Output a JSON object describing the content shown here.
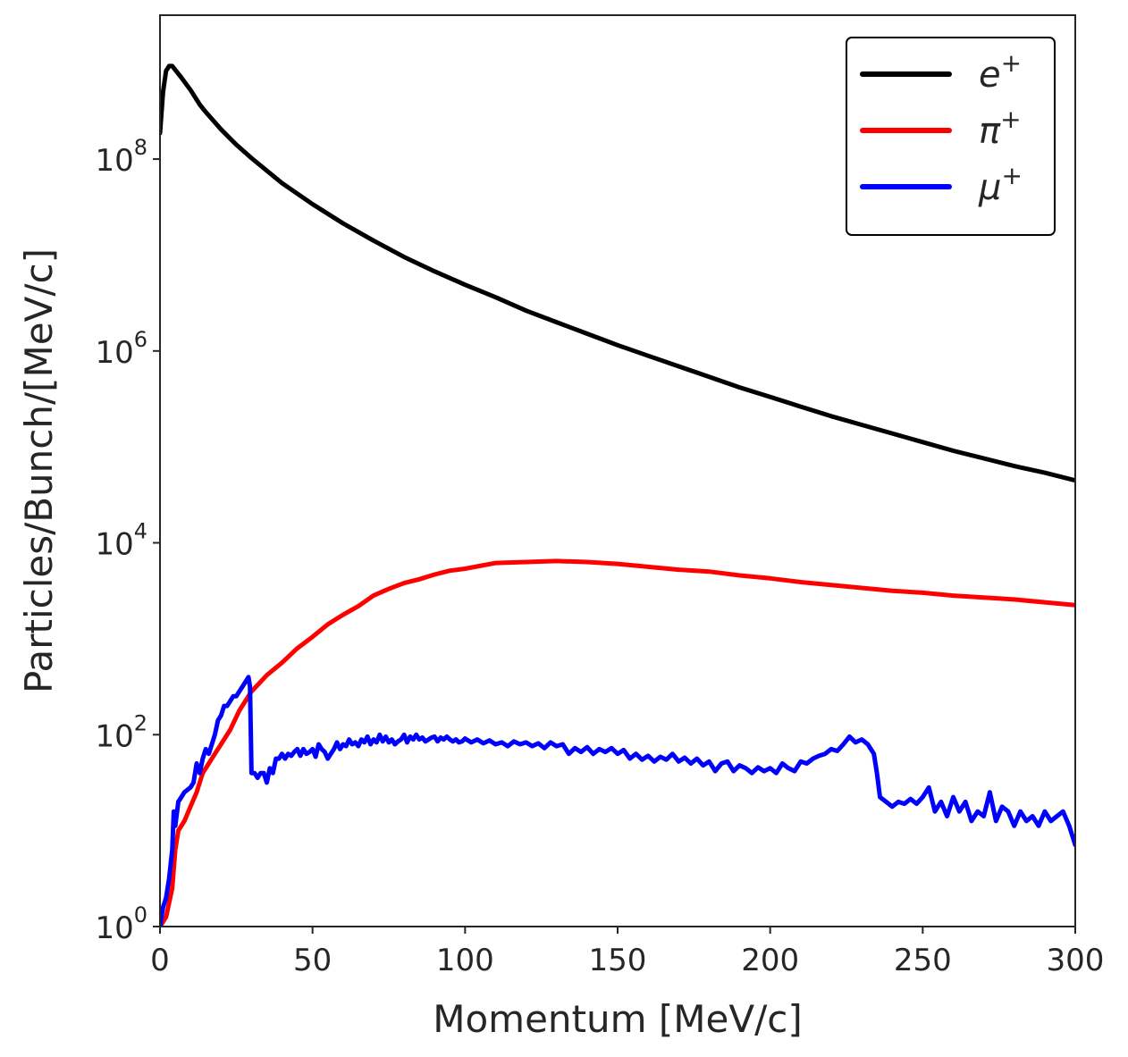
{
  "chart_data": {
    "type": "line",
    "xlabel": "Momentum [MeV/c]",
    "ylabel": "Particles/Bunch/[MeV/c]",
    "yscale": "log",
    "xlim": [
      0,
      300
    ],
    "ylim_exponent": [
      0,
      9.5
    ],
    "x_ticks": [
      0,
      50,
      100,
      150,
      200,
      250,
      300
    ],
    "x_tick_labels": [
      "0",
      "50",
      "100",
      "150",
      "200",
      "250",
      "300"
    ],
    "y_ticks": [
      {
        "base": "10",
        "exp": "0",
        "value": 0
      },
      {
        "base": "10",
        "exp": "2",
        "value": 2
      },
      {
        "base": "10",
        "exp": "4",
        "value": 4
      },
      {
        "base": "10",
        "exp": "6",
        "value": 6
      },
      {
        "base": "10",
        "exp": "8",
        "value": 8
      }
    ],
    "legend_position": "top-right",
    "series": [
      {
        "name_base": "e",
        "name_sup": "+",
        "color": "#000000",
        "points": [
          [
            0,
            8.27
          ],
          [
            1,
            8.7
          ],
          [
            2,
            8.92
          ],
          [
            3,
            8.97
          ],
          [
            4,
            8.97
          ],
          [
            5,
            8.93
          ],
          [
            7,
            8.85
          ],
          [
            10,
            8.72
          ],
          [
            13,
            8.57
          ],
          [
            15,
            8.49
          ],
          [
            20,
            8.31
          ],
          [
            25,
            8.15
          ],
          [
            30,
            8.01
          ],
          [
            40,
            7.75
          ],
          [
            50,
            7.53
          ],
          [
            60,
            7.33
          ],
          [
            70,
            7.15
          ],
          [
            80,
            6.98
          ],
          [
            90,
            6.83
          ],
          [
            100,
            6.69
          ],
          [
            110,
            6.56
          ],
          [
            120,
            6.42
          ],
          [
            130,
            6.3
          ],
          [
            140,
            6.18
          ],
          [
            150,
            6.06
          ],
          [
            160,
            5.95
          ],
          [
            170,
            5.84
          ],
          [
            180,
            5.73
          ],
          [
            190,
            5.62
          ],
          [
            200,
            5.52
          ],
          [
            210,
            5.42
          ],
          [
            220,
            5.32
          ],
          [
            230,
            5.23
          ],
          [
            240,
            5.14
          ],
          [
            250,
            5.05
          ],
          [
            260,
            4.96
          ],
          [
            270,
            4.88
          ],
          [
            280,
            4.8
          ],
          [
            290,
            4.73
          ],
          [
            300,
            4.65
          ]
        ]
      },
      {
        "name_base": "π",
        "name_sup": "+",
        "color": "#ff0000",
        "points": [
          [
            0,
            0
          ],
          [
            2,
            0.1
          ],
          [
            4,
            0.4
          ],
          [
            5,
            0.8
          ],
          [
            6,
            1.0
          ],
          [
            8,
            1.1
          ],
          [
            10,
            1.25
          ],
          [
            12,
            1.4
          ],
          [
            14,
            1.6
          ],
          [
            16,
            1.7
          ],
          [
            18,
            1.8
          ],
          [
            20,
            1.9
          ],
          [
            23,
            2.05
          ],
          [
            26,
            2.25
          ],
          [
            30,
            2.45
          ],
          [
            35,
            2.62
          ],
          [
            40,
            2.75
          ],
          [
            45,
            2.9
          ],
          [
            50,
            3.02
          ],
          [
            55,
            3.15
          ],
          [
            60,
            3.25
          ],
          [
            65,
            3.34
          ],
          [
            70,
            3.45
          ],
          [
            75,
            3.52
          ],
          [
            80,
            3.58
          ],
          [
            85,
            3.62
          ],
          [
            90,
            3.67
          ],
          [
            95,
            3.71
          ],
          [
            100,
            3.73
          ],
          [
            110,
            3.79
          ],
          [
            120,
            3.8
          ],
          [
            130,
            3.81
          ],
          [
            140,
            3.8
          ],
          [
            150,
            3.78
          ],
          [
            160,
            3.75
          ],
          [
            170,
            3.72
          ],
          [
            180,
            3.7
          ],
          [
            190,
            3.66
          ],
          [
            200,
            3.63
          ],
          [
            210,
            3.59
          ],
          [
            220,
            3.56
          ],
          [
            230,
            3.53
          ],
          [
            240,
            3.5
          ],
          [
            250,
            3.48
          ],
          [
            260,
            3.45
          ],
          [
            270,
            3.43
          ],
          [
            280,
            3.41
          ],
          [
            290,
            3.38
          ],
          [
            300,
            3.35
          ]
        ]
      },
      {
        "name_base": "μ",
        "name_sup": "+",
        "color": "#0000ff",
        "points": [
          [
            0,
            0
          ],
          [
            1,
            0.2
          ],
          [
            2,
            0.3
          ],
          [
            3,
            0.5
          ],
          [
            4,
            0.8
          ],
          [
            4.5,
            1.2
          ],
          [
            5,
            1.05
          ],
          [
            6,
            1.3
          ],
          [
            7,
            1.35
          ],
          [
            8,
            1.4
          ],
          [
            10,
            1.45
          ],
          [
            11,
            1.5
          ],
          [
            12,
            1.7
          ],
          [
            13,
            1.6
          ],
          [
            14,
            1.75
          ],
          [
            15,
            1.85
          ],
          [
            16,
            1.8
          ],
          [
            17,
            1.9
          ],
          [
            18,
            2.0
          ],
          [
            19,
            2.15
          ],
          [
            20,
            2.2
          ],
          [
            21,
            2.3
          ],
          [
            22,
            2.3
          ],
          [
            23,
            2.35
          ],
          [
            24,
            2.4
          ],
          [
            25,
            2.4
          ],
          [
            26,
            2.45
          ],
          [
            27,
            2.5
          ],
          [
            28,
            2.55
          ],
          [
            29,
            2.6
          ],
          [
            29.5,
            2.5
          ],
          [
            30,
            1.6
          ],
          [
            31,
            1.6
          ],
          [
            32,
            1.55
          ],
          [
            33,
            1.6
          ],
          [
            34,
            1.6
          ],
          [
            35,
            1.5
          ],
          [
            36,
            1.65
          ],
          [
            37,
            1.6
          ],
          [
            38,
            1.75
          ],
          [
            39,
            1.75
          ],
          [
            40,
            1.8
          ],
          [
            41,
            1.75
          ],
          [
            42,
            1.8
          ],
          [
            43,
            1.78
          ],
          [
            44,
            1.82
          ],
          [
            45,
            1.85
          ],
          [
            46,
            1.78
          ],
          [
            47,
            1.85
          ],
          [
            48,
            1.8
          ],
          [
            49,
            1.82
          ],
          [
            50,
            1.85
          ],
          [
            51,
            1.77
          ],
          [
            52,
            1.9
          ],
          [
            53,
            1.85
          ],
          [
            54,
            1.82
          ],
          [
            55,
            1.75
          ],
          [
            56,
            1.8
          ],
          [
            57,
            1.85
          ],
          [
            58,
            1.92
          ],
          [
            59,
            1.85
          ],
          [
            60,
            1.9
          ],
          [
            61,
            1.88
          ],
          [
            62,
            1.95
          ],
          [
            63,
            1.9
          ],
          [
            64,
            1.92
          ],
          [
            65,
            1.88
          ],
          [
            66,
            1.95
          ],
          [
            67,
            1.92
          ],
          [
            68,
            1.98
          ],
          [
            69,
            1.9
          ],
          [
            70,
            1.95
          ],
          [
            71,
            1.92
          ],
          [
            72,
            2.0
          ],
          [
            73,
            1.93
          ],
          [
            74,
            1.98
          ],
          [
            75,
            1.92
          ],
          [
            76,
            1.95
          ],
          [
            77,
            1.9
          ],
          [
            78,
            1.93
          ],
          [
            79,
            1.95
          ],
          [
            80,
            2.0
          ],
          [
            81,
            1.92
          ],
          [
            82,
            1.98
          ],
          [
            83,
            1.95
          ],
          [
            84,
            2.0
          ],
          [
            85,
            1.95
          ],
          [
            86,
            1.97
          ],
          [
            87,
            1.93
          ],
          [
            88,
            1.95
          ],
          [
            89,
            1.97
          ],
          [
            90,
            1.98
          ],
          [
            91,
            1.93
          ],
          [
            92,
            1.97
          ],
          [
            93,
            1.95
          ],
          [
            94,
            1.98
          ],
          [
            95,
            1.95
          ],
          [
            96,
            1.93
          ],
          [
            97,
            1.95
          ],
          [
            98,
            1.92
          ],
          [
            99,
            1.93
          ],
          [
            100,
            1.96
          ],
          [
            102,
            1.92
          ],
          [
            104,
            1.95
          ],
          [
            106,
            1.91
          ],
          [
            108,
            1.94
          ],
          [
            110,
            1.9
          ],
          [
            112,
            1.92
          ],
          [
            114,
            1.88
          ],
          [
            116,
            1.93
          ],
          [
            118,
            1.9
          ],
          [
            120,
            1.92
          ],
          [
            122,
            1.88
          ],
          [
            124,
            1.91
          ],
          [
            126,
            1.86
          ],
          [
            128,
            1.92
          ],
          [
            130,
            1.88
          ],
          [
            132,
            1.9
          ],
          [
            134,
            1.8
          ],
          [
            136,
            1.86
          ],
          [
            138,
            1.82
          ],
          [
            140,
            1.87
          ],
          [
            142,
            1.8
          ],
          [
            144,
            1.85
          ],
          [
            146,
            1.82
          ],
          [
            148,
            1.86
          ],
          [
            150,
            1.8
          ],
          [
            152,
            1.84
          ],
          [
            154,
            1.75
          ],
          [
            156,
            1.8
          ],
          [
            158,
            1.74
          ],
          [
            160,
            1.78
          ],
          [
            162,
            1.72
          ],
          [
            164,
            1.77
          ],
          [
            166,
            1.74
          ],
          [
            168,
            1.8
          ],
          [
            170,
            1.72
          ],
          [
            172,
            1.76
          ],
          [
            174,
            1.7
          ],
          [
            176,
            1.75
          ],
          [
            178,
            1.68
          ],
          [
            180,
            1.72
          ],
          [
            182,
            1.62
          ],
          [
            184,
            1.7
          ],
          [
            186,
            1.72
          ],
          [
            188,
            1.62
          ],
          [
            190,
            1.68
          ],
          [
            192,
            1.65
          ],
          [
            194,
            1.6
          ],
          [
            196,
            1.66
          ],
          [
            198,
            1.62
          ],
          [
            200,
            1.65
          ],
          [
            202,
            1.6
          ],
          [
            204,
            1.7
          ],
          [
            206,
            1.65
          ],
          [
            208,
            1.62
          ],
          [
            210,
            1.72
          ],
          [
            212,
            1.7
          ],
          [
            214,
            1.75
          ],
          [
            216,
            1.78
          ],
          [
            218,
            1.8
          ],
          [
            220,
            1.85
          ],
          [
            222,
            1.83
          ],
          [
            224,
            1.9
          ],
          [
            226,
            1.98
          ],
          [
            228,
            1.92
          ],
          [
            230,
            1.95
          ],
          [
            232,
            1.9
          ],
          [
            234,
            1.8
          ],
          [
            235,
            1.6
          ],
          [
            236,
            1.35
          ],
          [
            238,
            1.3
          ],
          [
            240,
            1.25
          ],
          [
            242,
            1.3
          ],
          [
            244,
            1.28
          ],
          [
            246,
            1.33
          ],
          [
            248,
            1.28
          ],
          [
            250,
            1.35
          ],
          [
            252,
            1.45
          ],
          [
            254,
            1.2
          ],
          [
            256,
            1.3
          ],
          [
            258,
            1.15
          ],
          [
            260,
            1.35
          ],
          [
            262,
            1.2
          ],
          [
            264,
            1.3
          ],
          [
            266,
            1.1
          ],
          [
            268,
            1.2
          ],
          [
            270,
            1.15
          ],
          [
            272,
            1.4
          ],
          [
            274,
            1.1
          ],
          [
            276,
            1.25
          ],
          [
            278,
            1.2
          ],
          [
            280,
            1.05
          ],
          [
            282,
            1.2
          ],
          [
            284,
            1.1
          ],
          [
            286,
            1.15
          ],
          [
            288,
            1.05
          ],
          [
            290,
            1.2
          ],
          [
            292,
            1.1
          ],
          [
            294,
            1.15
          ],
          [
            296,
            1.2
          ],
          [
            298,
            1.05
          ],
          [
            300,
            0.85
          ]
        ]
      }
    ]
  }
}
